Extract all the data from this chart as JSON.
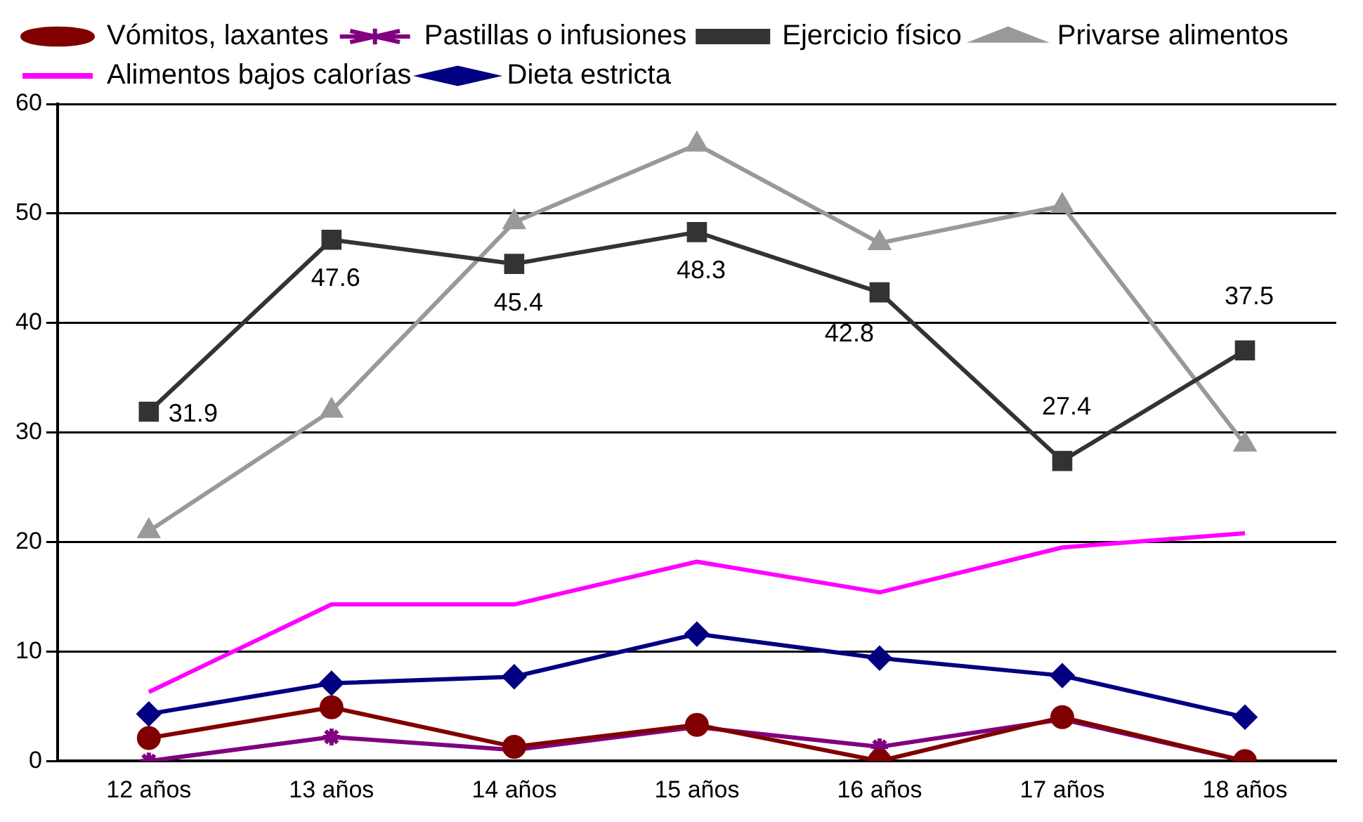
{
  "chart_data": {
    "type": "line",
    "categories": [
      "12 años",
      "13 años",
      "14 años",
      "15 años",
      "16 años",
      "17 años",
      "18 años"
    ],
    "series": [
      {
        "name": "Dieta estricta",
        "color": "#000080",
        "marker": "diamond",
        "values": [
          4.3,
          7.1,
          7.7,
          11.6,
          9.4,
          7.8,
          4.0
        ]
      },
      {
        "name": "Alimentos bajos calorías",
        "color": "#ff00ff",
        "marker": "none",
        "values": [
          6.3,
          14.3,
          14.3,
          18.2,
          15.4,
          19.5,
          20.8
        ]
      },
      {
        "name": "Privarse alimentos",
        "color": "#999999",
        "marker": "triangle",
        "values": [
          21.0,
          32.0,
          49.2,
          56.3,
          47.3,
          50.7,
          28.9
        ]
      },
      {
        "name": "Ejercicio físico",
        "color": "#333333",
        "marker": "square",
        "values": [
          31.9,
          47.6,
          45.4,
          48.3,
          42.8,
          27.4,
          37.5
        ],
        "value_labels": [
          "31.9",
          "47.6",
          "45.4",
          "48.3",
          "42.8",
          "27.4",
          "37.5"
        ]
      },
      {
        "name": "Pastillas o infusiones",
        "color": "#800080",
        "marker": "cross",
        "values": [
          0,
          2.2,
          1.0,
          3.1,
          1.3,
          3.8,
          0
        ]
      },
      {
        "name": "Vómitos, laxantes",
        "color": "#800000",
        "marker": "circle",
        "values": [
          2.1,
          4.9,
          1.3,
          3.3,
          0,
          4.0,
          0
        ]
      }
    ],
    "ylim": [
      0,
      60
    ],
    "yticks": [
      0,
      10,
      20,
      30,
      40,
      50,
      60
    ],
    "grid": "y",
    "legend": "top"
  }
}
